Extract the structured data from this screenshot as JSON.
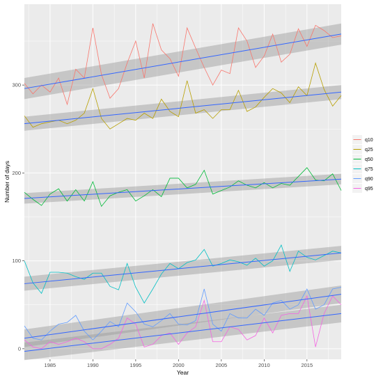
{
  "chart_data": {
    "type": "line",
    "xlabel": "Year",
    "ylabel": "Number of days",
    "xlim": [
      1982,
      2019
    ],
    "ylim": [
      -12,
      392
    ],
    "x_ticks": [
      1985,
      1990,
      1995,
      2000,
      2005,
      2010,
      2015
    ],
    "y_ticks": [
      0,
      100,
      200,
      300
    ],
    "grid": true,
    "legend_position": "right",
    "trend_color": "#3366FF",
    "ribbon_color": "#999999",
    "panel_background": "#EBEBEB",
    "years": [
      1982,
      1983,
      1984,
      1985,
      1986,
      1987,
      1988,
      1989,
      1990,
      1991,
      1992,
      1993,
      1994,
      1995,
      1996,
      1997,
      1998,
      1999,
      2000,
      2001,
      2002,
      2003,
      2004,
      2005,
      2006,
      2007,
      2008,
      2009,
      2010,
      2011,
      2012,
      2013,
      2014,
      2015,
      2016,
      2017,
      2018,
      2019
    ],
    "series": [
      {
        "name": "q10",
        "color": "#F8766D",
        "values": [
          302,
          290,
          300,
          292,
          308,
          278,
          318,
          308,
          365,
          312,
          285,
          296,
          325,
          350,
          308,
          370,
          340,
          330,
          310,
          365,
          342,
          320,
          300,
          317,
          313,
          365,
          350,
          320,
          333,
          358,
          326,
          335,
          364,
          344,
          368,
          362,
          354,
          356
        ],
        "trend": [
          296,
          358
        ],
        "band": 12
      },
      {
        "name": "q25",
        "color": "#B79F00",
        "values": [
          265,
          252,
          256,
          258,
          260,
          256,
          260,
          268,
          296,
          262,
          250,
          256,
          262,
          260,
          268,
          262,
          284,
          270,
          264,
          305,
          268,
          272,
          262,
          272,
          272,
          294,
          270,
          275,
          286,
          296,
          291,
          280,
          298,
          288,
          325,
          295,
          276,
          288
        ],
        "trend": [
          256,
          292
        ],
        "band": 8
      },
      {
        "name": "q50",
        "color": "#00BA38",
        "values": [
          178,
          170,
          163,
          176,
          182,
          168,
          181,
          168,
          190,
          162,
          174,
          178,
          181,
          168,
          174,
          181,
          173,
          194,
          194,
          183,
          187,
          203,
          176,
          180,
          184,
          191,
          186,
          183,
          189,
          183,
          188,
          186,
          196,
          206,
          192,
          191,
          199,
          180
        ],
        "trend": [
          171,
          193
        ],
        "band": 6
      },
      {
        "name": "q75",
        "color": "#00BFC4",
        "values": [
          100,
          75,
          63,
          87,
          87,
          86,
          82,
          79,
          86,
          86,
          71,
          67,
          97,
          70,
          52,
          68,
          85,
          97,
          91,
          98,
          101,
          113,
          94,
          97,
          101,
          99,
          95,
          103,
          94,
          100,
          118,
          88,
          111,
          104,
          101,
          106,
          111,
          109
        ],
        "trend": [
          74,
          109
        ],
        "band": 8
      },
      {
        "name": "q90",
        "color": "#619CFF",
        "values": [
          26,
          12,
          10,
          20,
          28,
          30,
          38,
          20,
          10,
          20,
          31,
          25,
          52,
          42,
          28,
          25,
          32,
          40,
          28,
          27,
          32,
          68,
          28,
          20,
          40,
          35,
          35,
          45,
          38,
          52,
          55,
          45,
          50,
          68,
          45,
          50,
          68,
          70
        ],
        "trend": [
          12,
          62
        ],
        "band": 10
      },
      {
        "name": "q95",
        "color": "#F564E3",
        "values": [
          10,
          2,
          0,
          8,
          5,
          8,
          12,
          8,
          0,
          0,
          5,
          12,
          35,
          28,
          2,
          5,
          15,
          18,
          5,
          18,
          25,
          55,
          8,
          8,
          25,
          22,
          10,
          15,
          35,
          18,
          38,
          40,
          40,
          60,
          2,
          40,
          60,
          50
        ],
        "trend": [
          -3,
          40
        ],
        "band": 10
      }
    ]
  }
}
